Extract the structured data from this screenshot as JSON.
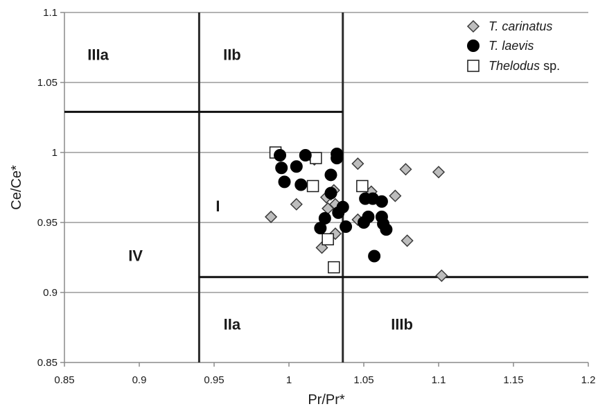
{
  "chart_data": {
    "type": "scatter",
    "xlabel": "Pr/Pr*",
    "ylabel": "Ce/Ce*",
    "xlim": [
      0.85,
      1.2
    ],
    "ylim": [
      0.85,
      1.1
    ],
    "x_ticks": [
      "0.85",
      "0.9",
      "0.95",
      "1",
      "1.05",
      "1.1",
      "1.15",
      "1.2"
    ],
    "y_ticks": [
      "0.85",
      "0.9",
      "0.95",
      "1",
      "1.05",
      "1.1"
    ],
    "grid": {
      "horizontal": true,
      "vertical": false
    },
    "legend_position": "top-right",
    "boundaries": {
      "vertical": [
        {
          "x": 0.94,
          "y_from": 0.85,
          "y_to": 1.1
        },
        {
          "x": 1.036,
          "y_from": 0.85,
          "y_to": 1.1
        }
      ],
      "horizontal": [
        {
          "y": 1.029,
          "x_from": 0.85,
          "x_to": 1.036
        },
        {
          "y": 0.911,
          "x_from": 0.94,
          "x_to": 1.2
        }
      ]
    },
    "regions": [
      {
        "label": "IIIa",
        "x": 0.8725,
        "y": 1.07
      },
      {
        "label": "IIb",
        "x": 0.962,
        "y": 1.07
      },
      {
        "label": "I",
        "x": 0.9525,
        "y": 0.962
      },
      {
        "label": "IV",
        "x": 0.8975,
        "y": 0.9265
      },
      {
        "label": "IIa",
        "x": 0.962,
        "y": 0.8775
      },
      {
        "label": "IIIb",
        "x": 1.0755,
        "y": 0.8775
      }
    ],
    "series": [
      {
        "name": "T. carinatus",
        "name_italic": "T. carinatus",
        "name_suffix": "",
        "marker": "diamond",
        "fill": "#bdbdbd",
        "stroke": "#3a3a3a",
        "points": [
          [
            0.988,
            0.954
          ],
          [
            1.005,
            0.963
          ],
          [
            1.017,
            0.995
          ],
          [
            1.022,
            0.932
          ],
          [
            1.025,
            0.968
          ],
          [
            1.026,
            0.96
          ],
          [
            1.028,
            0.97
          ],
          [
            1.03,
            0.973
          ],
          [
            1.031,
            0.963
          ],
          [
            1.031,
            0.942
          ],
          [
            1.033,
            0.958
          ],
          [
            1.046,
            0.952
          ],
          [
            1.046,
            0.992
          ],
          [
            1.055,
            0.972
          ],
          [
            1.071,
            0.969
          ],
          [
            1.078,
            0.988
          ],
          [
            1.079,
            0.937
          ],
          [
            1.1,
            0.986
          ],
          [
            1.102,
            0.912
          ]
        ]
      },
      {
        "name": "T. laevis",
        "name_italic": "T. laevis",
        "name_suffix": "",
        "marker": "circle",
        "fill": "#000000",
        "stroke": "#000000",
        "points": [
          [
            0.994,
            0.998
          ],
          [
            0.995,
            0.989
          ],
          [
            0.997,
            0.979
          ],
          [
            1.005,
            0.99
          ],
          [
            1.008,
            0.977
          ],
          [
            1.011,
            0.998
          ],
          [
            1.021,
            0.946
          ],
          [
            1.024,
            0.953
          ],
          [
            1.028,
            0.984
          ],
          [
            1.028,
            0.971
          ],
          [
            1.032,
            0.999
          ],
          [
            1.032,
            0.996
          ],
          [
            1.033,
            0.957
          ],
          [
            1.036,
            0.961
          ],
          [
            1.038,
            0.947
          ],
          [
            1.05,
            0.95
          ],
          [
            1.051,
            0.967
          ],
          [
            1.053,
            0.954
          ],
          [
            1.056,
            0.967
          ],
          [
            1.057,
            0.926
          ],
          [
            1.062,
            0.965
          ],
          [
            1.062,
            0.954
          ],
          [
            1.063,
            0.949
          ],
          [
            1.065,
            0.945
          ]
        ]
      },
      {
        "name": "Thelodus sp.",
        "name_italic": "Thelodus",
        "name_suffix": " sp.",
        "marker": "square",
        "fill": "#ffffff",
        "stroke": "#1a1a1a",
        "points": [
          [
            0.991,
            1.0
          ],
          [
            1.016,
            0.976
          ],
          [
            1.018,
            0.996
          ],
          [
            1.026,
            0.938
          ],
          [
            1.03,
            0.918
          ],
          [
            1.049,
            0.976
          ]
        ]
      }
    ]
  }
}
